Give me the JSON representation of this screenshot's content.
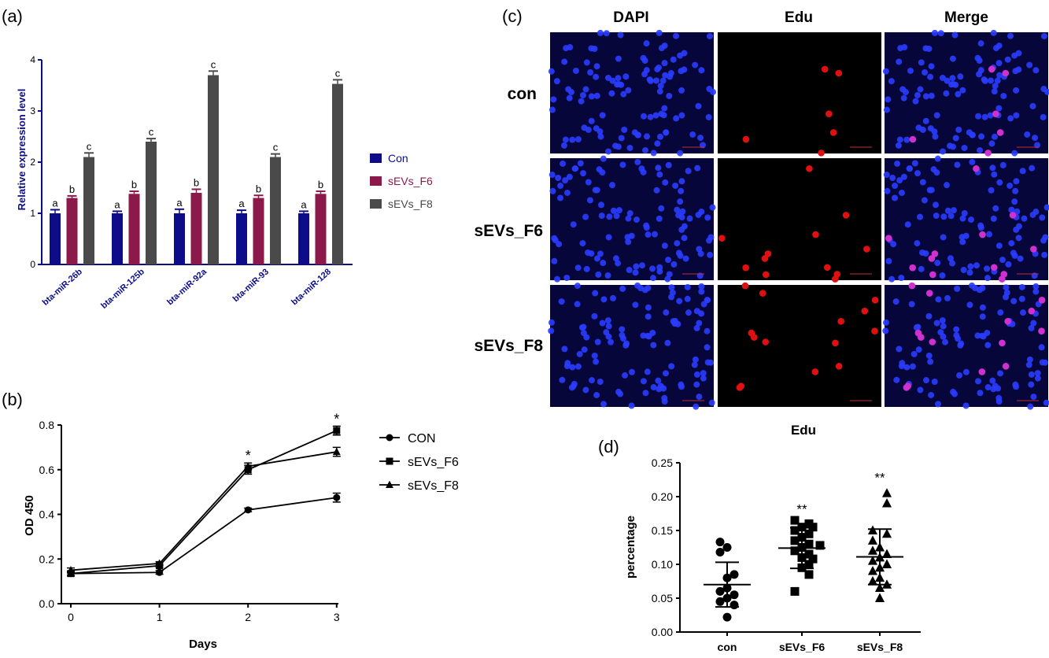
{
  "panel_labels": {
    "a": "(a)",
    "b": "(b)",
    "c": "(c)",
    "d": "(d)"
  },
  "colors": {
    "con": "#0d0d8a",
    "f6": "#8b1a4a",
    "f8": "#4a4a4a",
    "axis_a": "#0d0d8a",
    "dapi_bg": "#06063a",
    "dapi_cell": "#2a3cff",
    "edu_bg": "#000000",
    "edu_cell": "#e01010",
    "merge_cell": "#d030d0"
  },
  "chart_data": [
    {
      "panel": "a",
      "type": "bar",
      "title": "",
      "xlabel": "",
      "ylabel": "Relative expression level",
      "ylim": [
        0,
        4
      ],
      "yticks": [
        "0",
        "1",
        "2",
        "3",
        "4"
      ],
      "categories": [
        "bta-miR-26b",
        "bta-miR-125b",
        "bta-miR-92a",
        "bta-miR-93",
        "bta-miR-128"
      ],
      "series": [
        {
          "name": "Con",
          "values": [
            1.0,
            1.0,
            1.0,
            1.0,
            1.0
          ],
          "errors": [
            0.07,
            0.04,
            0.08,
            0.06,
            0.04
          ],
          "letters": [
            "a",
            "a",
            "a",
            "a",
            "a"
          ]
        },
        {
          "name": "sEVs_F6",
          "values": [
            1.3,
            1.38,
            1.4,
            1.3,
            1.38
          ],
          "errors": [
            0.04,
            0.05,
            0.07,
            0.05,
            0.05
          ],
          "letters": [
            "b",
            "b",
            "b",
            "b",
            "b"
          ]
        },
        {
          "name": "sEVs_F8",
          "values": [
            2.1,
            2.4,
            3.7,
            2.1,
            3.53
          ],
          "errors": [
            0.08,
            0.06,
            0.08,
            0.06,
            0.08
          ],
          "letters": [
            "c",
            "c",
            "c",
            "c",
            "c"
          ]
        }
      ],
      "legend": "right"
    },
    {
      "panel": "b",
      "type": "line",
      "xlabel": "Days",
      "ylabel": "OD 450",
      "x": [
        0,
        1,
        2,
        3
      ],
      "xticks": [
        "0",
        "1",
        "2",
        "3"
      ],
      "ylim": [
        0,
        0.8
      ],
      "yticks": [
        "0.0",
        "0.2",
        "0.4",
        "0.6",
        "0.8"
      ],
      "series": [
        {
          "name": "CON",
          "marker": "circle",
          "values": [
            0.135,
            0.14,
            0.42,
            0.475
          ],
          "errors": [
            0.01,
            0.008,
            0.008,
            0.02
          ]
        },
        {
          "name": "sEVs_F6",
          "marker": "square",
          "values": [
            0.135,
            0.17,
            0.6,
            0.775
          ],
          "errors": [
            0.01,
            0.008,
            0.02,
            0.02
          ]
        },
        {
          "name": "sEVs_F8",
          "marker": "triangle",
          "values": [
            0.15,
            0.18,
            0.615,
            0.68
          ],
          "errors": [
            0.01,
            0.008,
            0.015,
            0.02
          ]
        }
      ],
      "annotations": [
        {
          "x": 2,
          "text": "*"
        },
        {
          "x": 3,
          "text": "*"
        }
      ],
      "legend": "right"
    },
    {
      "panel": "d",
      "type": "scatter",
      "title": "Edu",
      "ylabel": "percentage",
      "ylim": [
        0,
        0.25
      ],
      "yticks": [
        "0.00",
        "0.05",
        "0.10",
        "0.15",
        "0.20",
        "0.25"
      ],
      "categories": [
        "con",
        "sEVs_F6",
        "sEVs_F8"
      ],
      "groups": [
        {
          "name": "con",
          "marker": "circle",
          "mean": 0.07,
          "sd": 0.033,
          "points": [
            0.133,
            0.125,
            0.118,
            0.085,
            0.08,
            0.065,
            0.06,
            0.055,
            0.05,
            0.045,
            0.04,
            0.022
          ]
        },
        {
          "name": "sEVs_F6",
          "marker": "square",
          "mean": 0.124,
          "sd": 0.03,
          "significance": "**",
          "points": [
            0.165,
            0.16,
            0.155,
            0.155,
            0.15,
            0.145,
            0.14,
            0.135,
            0.13,
            0.128,
            0.125,
            0.12,
            0.115,
            0.11,
            0.108,
            0.1,
            0.095,
            0.085,
            0.06
          ]
        },
        {
          "name": "sEVs_F8",
          "marker": "triangle",
          "mean": 0.111,
          "sd": 0.041,
          "significance": "**",
          "points": [
            0.205,
            0.19,
            0.15,
            0.145,
            0.135,
            0.125,
            0.12,
            0.115,
            0.11,
            0.105,
            0.1,
            0.095,
            0.09,
            0.08,
            0.075,
            0.07,
            0.065,
            0.05
          ]
        }
      ]
    }
  ],
  "micrographs": {
    "columns": [
      "DAPI",
      "Edu",
      "Merge"
    ],
    "rows": [
      "con",
      "sEVs_F6",
      "sEVs_F8"
    ]
  }
}
